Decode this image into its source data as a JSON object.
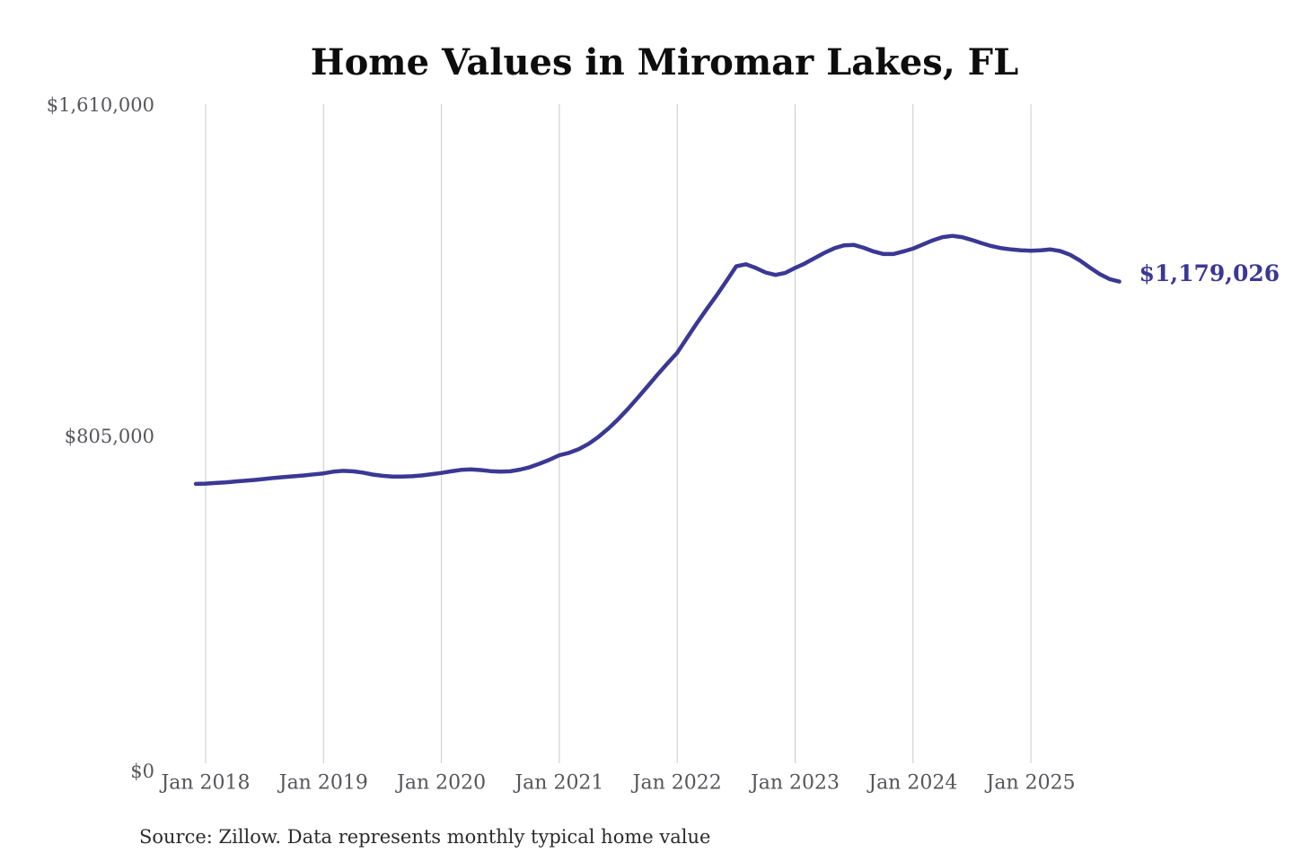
{
  "title": "Home Values in Miromar Lakes, FL",
  "source_note": "Source: Zillow. Data represents monthly typical home value",
  "colors": {
    "line": "#3b3894",
    "end_label": "#3b3894",
    "grid": "#cacaca",
    "axis_text": "#56565b",
    "title_text": "#0d0d0d",
    "source_text": "#2b2b2b",
    "background": "#ffffff"
  },
  "chart_data": {
    "type": "line",
    "title": "Home Values in Miromar Lakes, FL",
    "xlabel": "",
    "ylabel": "",
    "interval": "monthly",
    "x_start": "Dec 2017",
    "x_end": "Oct 2025",
    "ylim": [
      0,
      1610000
    ],
    "grid": "vertical-only",
    "legend": "none",
    "x_tick_labels": [
      "Jan 2018",
      "Jan 2019",
      "Jan 2020",
      "Jan 2021",
      "Jan 2022",
      "Jan 2023",
      "Jan 2024",
      "Jan 2025"
    ],
    "y_tick_values": [
      1610000,
      805000,
      0
    ],
    "y_tick_labels": [
      "$1,610,000",
      "$805,000",
      "$0"
    ],
    "end_value": 1179026,
    "end_value_label": "$1,179,026",
    "values": [
      687500,
      688000,
      689500,
      691000,
      693000,
      695000,
      697000,
      699500,
      702000,
      704000,
      706000,
      708000,
      710500,
      713000,
      717000,
      719000,
      718000,
      715000,
      710000,
      707000,
      705000,
      705000,
      706000,
      708000,
      711000,
      714000,
      718000,
      721500,
      722500,
      721000,
      718500,
      717000,
      718000,
      722000,
      728000,
      736500,
      746000,
      757000,
      763000,
      772000,
      785000,
      802000,
      822000,
      845000,
      870000,
      897000,
      925000,
      953000,
      980000,
      1006000,
      1042000,
      1078000,
      1112000,
      1145000,
      1180000,
      1216000,
      1221000,
      1212000,
      1201000,
      1195000,
      1200000,
      1212000,
      1223000,
      1236000,
      1249000,
      1260000,
      1267000,
      1268000,
      1261000,
      1252000,
      1246000,
      1246000,
      1252000,
      1259000,
      1269000,
      1279000,
      1287000,
      1290000,
      1287000,
      1280000,
      1272000,
      1265000,
      1260000,
      1257000,
      1255000,
      1254000,
      1255000,
      1257000,
      1253000,
      1244000,
      1230000,
      1213000,
      1197000,
      1185000,
      1179026
    ]
  }
}
